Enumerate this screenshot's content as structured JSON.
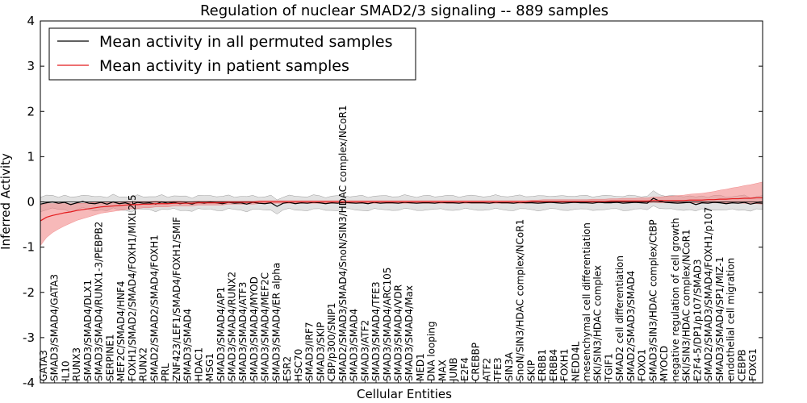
{
  "chart_data": {
    "type": "line",
    "title": "Regulation of nuclear SMAD2/3 signaling -- 889 samples",
    "xlabel": "Cellular Entities",
    "ylabel": "Inferred Activity",
    "ylim": [
      -4,
      4
    ],
    "yticks": [
      "-4",
      "-3",
      "-2",
      "-1",
      "0",
      "1",
      "2",
      "3",
      "4"
    ],
    "legend_position": "top-left",
    "colors": {
      "permuted": "#000000",
      "patient": "#e41a1c",
      "permuted_band": "#bfbfbf",
      "patient_band": "#f08080"
    },
    "x_count": 120,
    "entity_labels": [
      "GATA3",
      "SMAD3/SMAD4/GATA3",
      "IL10",
      "RUNX3",
      "SMAD3/SMAD4/DLX1",
      "SMAD3/SMAD4/RUNX1-3/PEBPB2",
      "SERPINE1",
      "MEF2C/SMAD4/HNF4",
      "FOXH1/SMAD2/SMAD4/FOXH1/MIXL2-5",
      "RUNX2",
      "SMAD2/SMAD2/SMAD4/FOXH1",
      "PRL",
      "ZNF423/LEF1/SMAD4/FOXH1/SMIF",
      "SMAD3/SMAD4",
      "HDAC1",
      "MSG1",
      "SMAD3/SMAD4/AP1",
      "SMAD3/SMAD4/RUNX2",
      "SMAD3/SMAD4/ATF3",
      "SMAD3/SMAD4/MYOD",
      "SMAD3/SMAD4/MEF2C",
      "SMAD3/SMAD4/ER alpha",
      "ESR2",
      "HSC70",
      "SMAD3/IRF7",
      "SMAD3/SKIP",
      "CBP/p300/SNIP1",
      "SMAD2/SMAD3/SMAD4/SnoN/SIN3/HDAC complex/NCoR1",
      "SMAD3/SMAD4",
      "SMAD3/ATF2",
      "SMAD3/SMAD4/TFE3",
      "SMAD3/SMAD4/ARC105",
      "SMAD3/SMAD4/VDR",
      "SMAD3/SMAD4/Max",
      "MED1",
      "DNA looping",
      "MAX",
      "JUNB",
      "E2F4",
      "CREBBP",
      "ATF2",
      "TFE3",
      "SIN3A",
      "SnoN/SIN3/HDAC complex/NCoR1",
      "SKIP",
      "ERBB1",
      "ERBB4",
      "FOXH1",
      "NEDD4L",
      "mesenchymal cell differentiation",
      "SKI/SIN3/HDAC complex",
      "TGIF1",
      "SMAD2 cell differentiation",
      "SMAD2/SMAD3/SMAD4",
      "FOXO1",
      "SMAD3/SIN3/HDAC complex/CtBP",
      "MYOCD",
      "negative regulation of cell growth",
      "SKI/SIN3/HDAC complex/NCoR1",
      "E2F4-5/DP1/p107/SMAD3",
      "SMAD2/SMAD3/SMAD4/FOXH1/p107",
      "SMAD3/SMAD4/SP1/MIZ-1",
      "endothelial cell migration",
      "CEBPB",
      "FOXG1"
    ],
    "series": [
      {
        "name": "Mean activity in all permuted samples",
        "color": "#000000",
        "values": [
          -0.05,
          -0.02,
          0.0,
          -0.03,
          -0.01,
          -0.06,
          -0.02,
          0.01,
          -0.03,
          -0.04,
          -0.01,
          -0.05,
          0.0,
          -0.04,
          -0.02,
          -0.06,
          -0.01,
          -0.03,
          -0.02,
          -0.05,
          0.0,
          -0.03,
          -0.01,
          -0.04,
          -0.02,
          -0.05,
          -0.01,
          -0.03,
          0.0,
          -0.02,
          -0.04,
          -0.01,
          -0.03,
          -0.02,
          -0.05,
          -0.01,
          -0.03,
          -0.04,
          -0.02,
          -0.1,
          -0.03,
          -0.01,
          -0.04,
          -0.02,
          -0.03,
          -0.01,
          -0.02,
          -0.04,
          -0.02,
          -0.03,
          -0.01,
          -0.02,
          -0.03,
          -0.02,
          -0.04,
          -0.01,
          -0.03,
          -0.02,
          -0.02,
          -0.03,
          -0.01,
          -0.02,
          -0.03,
          -0.02,
          -0.02,
          -0.03,
          -0.01,
          -0.02,
          -0.02,
          -0.03,
          -0.01,
          -0.02,
          -0.02,
          -0.02,
          -0.03,
          -0.01,
          -0.02,
          -0.02,
          -0.03,
          -0.01,
          -0.02,
          -0.02,
          -0.03,
          -0.02,
          -0.01,
          -0.02,
          -0.03,
          -0.02,
          -0.01,
          -0.02,
          -0.02,
          -0.03,
          -0.01,
          -0.02,
          -0.02,
          -0.01,
          -0.03,
          -0.02,
          -0.01,
          -0.02,
          -0.03,
          0.08,
          0.02,
          -0.01,
          -0.02,
          -0.03,
          -0.02,
          -0.01,
          -0.06,
          -0.02,
          -0.03,
          -0.01,
          -0.02,
          -0.04,
          -0.02,
          -0.03,
          -0.01,
          -0.05,
          -0.02,
          -0.03
        ],
        "band": 0.15
      },
      {
        "name": "Mean activity in patient samples",
        "color": "#e41a1c",
        "values": [
          -0.42,
          -0.34,
          -0.3,
          -0.27,
          -0.24,
          -0.22,
          -0.19,
          -0.17,
          -0.15,
          -0.13,
          -0.11,
          -0.1,
          -0.09,
          -0.08,
          -0.07,
          -0.06,
          -0.06,
          -0.05,
          -0.05,
          -0.04,
          -0.04,
          -0.04,
          -0.03,
          -0.03,
          -0.03,
          -0.03,
          -0.02,
          -0.02,
          -0.02,
          -0.02,
          -0.02,
          -0.01,
          -0.01,
          -0.01,
          -0.01,
          -0.01,
          0.0,
          0.0,
          0.0,
          0.0,
          0.0,
          0.0,
          0.0,
          0.0,
          0.0,
          0.0,
          0.0,
          0.0,
          0.0,
          0.0,
          0.0,
          0.0,
          0.0,
          0.0,
          0.0,
          0.0,
          0.0,
          0.0,
          0.0,
          0.0,
          0.0,
          0.0,
          0.0,
          0.0,
          0.0,
          0.0,
          0.0,
          0.0,
          0.0,
          0.0,
          0.0,
          0.0,
          0.0,
          0.0,
          0.0,
          0.0,
          0.0,
          0.0,
          0.0,
          0.0,
          0.0,
          0.01,
          0.01,
          0.01,
          0.01,
          0.01,
          0.01,
          0.01,
          0.01,
          0.01,
          0.01,
          0.01,
          0.01,
          0.01,
          0.02,
          0.02,
          0.02,
          0.02,
          0.02,
          0.02,
          0.02,
          0.03,
          0.03,
          0.03,
          0.03,
          0.03,
          0.03,
          0.04,
          0.04,
          0.04,
          0.05,
          0.05,
          0.06,
          0.06,
          0.07,
          0.07,
          0.08,
          0.08,
          0.09,
          0.09
        ],
        "band_lower": [
          0.55,
          0.45,
          0.38,
          0.33,
          0.29,
          0.25,
          0.22,
          0.2,
          0.18,
          0.16,
          0.14,
          0.13,
          0.12,
          0.11,
          0.1,
          0.09,
          0.09,
          0.08,
          0.08,
          0.07,
          0.07,
          0.07,
          0.06,
          0.06,
          0.06,
          0.06,
          0.05,
          0.05,
          0.05,
          0.05,
          0.05,
          0.04,
          0.04,
          0.04,
          0.04,
          0.04,
          0.04,
          0.03,
          0.03,
          0.03,
          0.03,
          0.03,
          0.03,
          0.03,
          0.03,
          0.03,
          0.03,
          0.03,
          0.03,
          0.03,
          0.03,
          0.03,
          0.03,
          0.03,
          0.03,
          0.03,
          0.03,
          0.03,
          0.03,
          0.03,
          0.03,
          0.03,
          0.03,
          0.03,
          0.03,
          0.03,
          0.03,
          0.03,
          0.03,
          0.03,
          0.03,
          0.03,
          0.03,
          0.03,
          0.03,
          0.03,
          0.03,
          0.03,
          0.03,
          0.03,
          0.03,
          0.03,
          0.03,
          0.03,
          0.03,
          0.03,
          0.03,
          0.03,
          0.03,
          0.03,
          0.03,
          0.03,
          0.03,
          0.03,
          0.04,
          0.04,
          0.04,
          0.04,
          0.04,
          0.04,
          0.04,
          0.04,
          0.05,
          0.05,
          0.05,
          0.05,
          0.05,
          0.06,
          0.06,
          0.06,
          0.07,
          0.07,
          0.08,
          0.08,
          0.09,
          0.1,
          0.11,
          0.12,
          0.13,
          0.14
        ],
        "band_upper": [
          0.35,
          0.3,
          0.26,
          0.23,
          0.2,
          0.18,
          0.16,
          0.14,
          0.13,
          0.12,
          0.11,
          0.1,
          0.09,
          0.08,
          0.08,
          0.07,
          0.07,
          0.06,
          0.06,
          0.06,
          0.05,
          0.05,
          0.05,
          0.05,
          0.04,
          0.04,
          0.04,
          0.04,
          0.04,
          0.04,
          0.04,
          0.03,
          0.03,
          0.03,
          0.03,
          0.03,
          0.03,
          0.03,
          0.03,
          0.03,
          0.03,
          0.03,
          0.03,
          0.03,
          0.03,
          0.03,
          0.03,
          0.03,
          0.03,
          0.03,
          0.03,
          0.03,
          0.03,
          0.03,
          0.03,
          0.03,
          0.03,
          0.03,
          0.03,
          0.03,
          0.03,
          0.03,
          0.03,
          0.03,
          0.03,
          0.03,
          0.03,
          0.03,
          0.03,
          0.03,
          0.03,
          0.03,
          0.03,
          0.03,
          0.03,
          0.03,
          0.03,
          0.03,
          0.03,
          0.03,
          0.03,
          0.03,
          0.03,
          0.04,
          0.04,
          0.04,
          0.04,
          0.04,
          0.04,
          0.04,
          0.04,
          0.05,
          0.05,
          0.05,
          0.05,
          0.05,
          0.06,
          0.06,
          0.06,
          0.07,
          0.07,
          0.08,
          0.08,
          0.09,
          0.1,
          0.11,
          0.12,
          0.13,
          0.14,
          0.15,
          0.16,
          0.18,
          0.2,
          0.22,
          0.24,
          0.26,
          0.28,
          0.3,
          0.32,
          0.35
        ]
      }
    ]
  }
}
